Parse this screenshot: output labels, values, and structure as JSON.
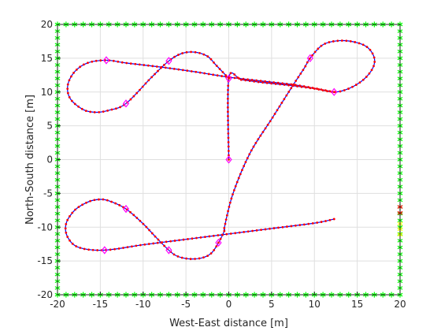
{
  "chart_data": {
    "type": "scatter",
    "xlabel": "West-East distance [m]",
    "ylabel": "North-South distance [m]",
    "xlim": [
      -20,
      20
    ],
    "ylim": [
      -20,
      20
    ],
    "xticks": [
      -20,
      -15,
      -10,
      -5,
      0,
      5,
      10,
      15,
      20
    ],
    "yticks": [
      -20,
      -15,
      -10,
      -5,
      0,
      5,
      10,
      15,
      20
    ],
    "grid": true,
    "colors": {
      "path": "#0000ff",
      "samples": "#ff0000",
      "waypoints": "#ff00ff",
      "boundary": "#00ff00",
      "status_red": "#ff0000",
      "status_yellow": "#ffff00",
      "axes": "#262626",
      "grid": "#dfdfdf"
    },
    "path_vertices": [
      [
        0,
        0
      ],
      [
        0,
        12
      ],
      [
        1.5,
        11.8
      ],
      [
        4,
        11.4
      ],
      [
        7,
        11
      ],
      [
        10,
        10.5
      ],
      [
        12.3,
        10
      ],
      [
        14,
        10.5
      ],
      [
        15.7,
        11.8
      ],
      [
        16.8,
        13.5
      ],
      [
        17,
        15
      ],
      [
        16.3,
        16.5
      ],
      [
        15,
        17.3
      ],
      [
        13,
        17.6
      ],
      [
        11,
        17
      ],
      [
        9.5,
        15
      ],
      [
        8.8,
        13.5
      ],
      [
        7.5,
        11
      ],
      [
        5,
        6
      ],
      [
        2.5,
        1
      ],
      [
        0.5,
        -5
      ],
      [
        -0.5,
        -10
      ],
      [
        -0.5,
        -10.5
      ],
      [
        -1.2,
        -12.3
      ],
      [
        -2,
        -13.8
      ],
      [
        -3,
        -14.5
      ],
      [
        -4.5,
        -14.7
      ],
      [
        -6,
        -14.3
      ],
      [
        -7,
        -13.4
      ],
      [
        -8.5,
        -11.5
      ],
      [
        -10,
        -9.5
      ],
      [
        -12,
        -7.3
      ],
      [
        -14,
        -6.1
      ],
      [
        -15.2,
        -5.9
      ],
      [
        -16.5,
        -6.3
      ],
      [
        -18,
        -7.5
      ],
      [
        -19,
        -9.5
      ],
      [
        -18.8,
        -11.5
      ],
      [
        -17.5,
        -13
      ],
      [
        -14.5,
        -13.4
      ],
      [
        -10,
        -12.6
      ],
      [
        -5,
        -11.8
      ],
      [
        0,
        -11
      ],
      [
        5,
        -10.2
      ],
      [
        10,
        -9.4
      ],
      [
        12.3,
        -8.8
      ]
    ],
    "path_vertices_tail": [
      [
        0,
        12
      ],
      [
        -1.5,
        14
      ],
      [
        -2.5,
        15.3
      ],
      [
        -4,
        15.9
      ],
      [
        -5.5,
        15.7
      ],
      [
        -7,
        14.6
      ],
      [
        -9,
        12.2
      ],
      [
        -12,
        8.3
      ],
      [
        -14,
        7.3
      ],
      [
        -15.5,
        7
      ],
      [
        -17,
        7.4
      ],
      [
        -18.5,
        9
      ],
      [
        -18.8,
        11
      ],
      [
        -18,
        13
      ],
      [
        -16.5,
        14.3
      ],
      [
        -14.3,
        14.7
      ],
      [
        -12,
        14.3
      ],
      [
        -8,
        13.7
      ],
      [
        -4,
        13
      ],
      [
        0,
        12.2
      ],
      [
        4,
        11.6
      ],
      [
        8,
        11
      ],
      [
        12.3,
        10
      ]
    ],
    "waypoints": [
      [
        0,
        0
      ],
      [
        0,
        12
      ],
      [
        -7,
        14.6
      ],
      [
        -14.3,
        14.7
      ],
      [
        -12,
        8.3
      ],
      [
        9.5,
        15
      ],
      [
        12.3,
        10
      ],
      [
        -1.2,
        -12.3
      ],
      [
        -7,
        -13.4
      ],
      [
        -12,
        -7.3
      ],
      [
        -14.5,
        -13.4
      ]
    ],
    "boundary_spacing": 1,
    "status_markers": [
      {
        "color": "red",
        "points": [
          [
            20,
            -7
          ],
          [
            20,
            -7.9
          ]
        ]
      },
      {
        "color": "yellow",
        "points": [
          [
            20,
            -9.5
          ],
          [
            20,
            -10.3
          ],
          [
            20,
            -11.1
          ]
        ]
      }
    ]
  }
}
